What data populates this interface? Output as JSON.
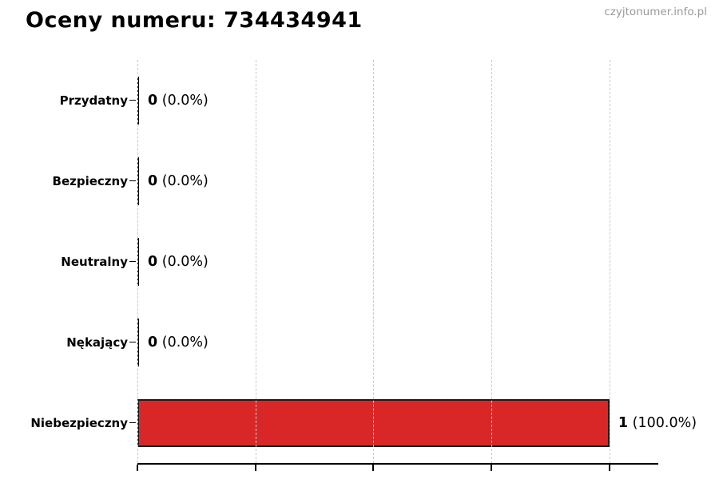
{
  "page": {
    "title": "Oceny numeru: 734434941",
    "watermark": "czyjtonumer.info.pl"
  },
  "colors": {
    "bar_fill": "#d92728",
    "bar_edge": "#1a1a1a",
    "zero_bar": "#000000",
    "grid": "#c9c9c9",
    "axis": "#000000",
    "watermark_text": "#999999"
  },
  "chart_data": {
    "type": "bar",
    "orientation": "horizontal",
    "title": "Oceny numeru: 734434941",
    "categories": [
      "Przydatny",
      "Bezpieczny",
      "Neutralny",
      "Nękający",
      "Niebezpieczny"
    ],
    "values": [
      0,
      0,
      0,
      0,
      1
    ],
    "value_labels": [
      {
        "count": "0",
        "percent": "(0.0%)"
      },
      {
        "count": "0",
        "percent": "(0.0%)"
      },
      {
        "count": "0",
        "percent": "(0.0%)"
      },
      {
        "count": "0",
        "percent": "(0.0%)"
      },
      {
        "count": "1",
        "percent": "(100.0%)"
      }
    ],
    "xlabel": "",
    "ylabel": "",
    "xlim": [
      0,
      1.1
    ],
    "xticks": [
      0,
      0.25,
      0.5,
      0.75,
      1.0
    ],
    "xtick_labels_visible": false,
    "grid": "vertical-dashed",
    "legend": "none",
    "bar_color": "#d92728",
    "highlight_category": "Niebezpieczny"
  }
}
